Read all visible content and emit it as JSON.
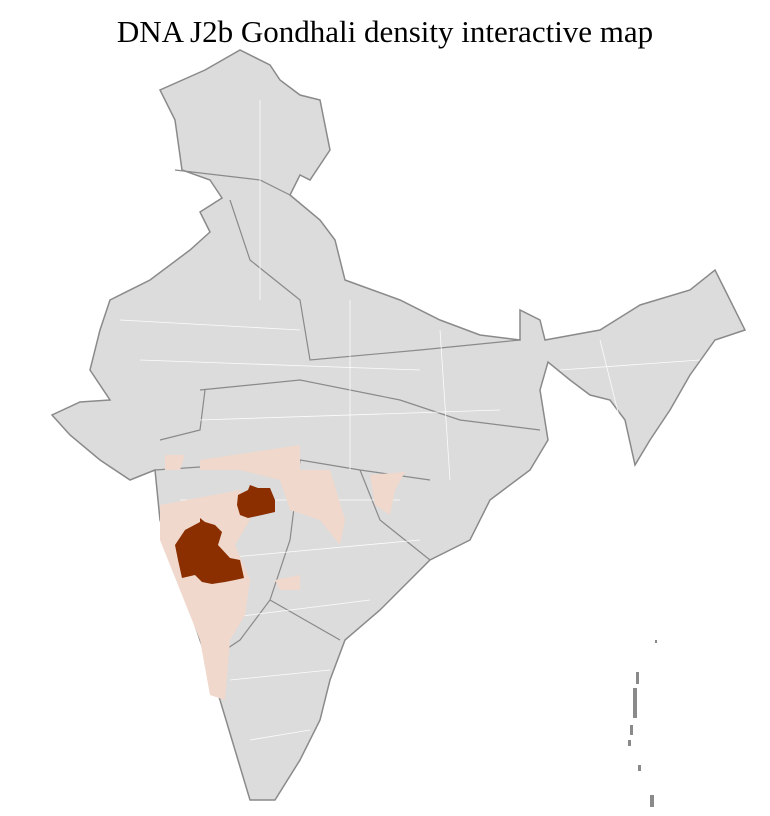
{
  "title": "DNA J2b Gondhali density interactive map",
  "colors": {
    "background_region": "#dcdcdc",
    "border_state": "#8a8a8a",
    "border_district": "#ffffff",
    "low_density": "#f0d8cc",
    "high_density": "#8b2e00"
  },
  "legend": null
}
